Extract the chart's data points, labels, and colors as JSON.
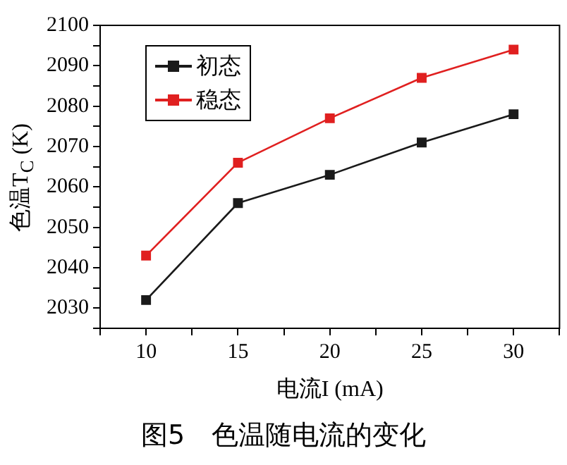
{
  "chart_data": {
    "type": "line",
    "xlabel": "电流I (mA)",
    "ylabel": "色温T$_{C}$ (K)",
    "x": [
      10,
      15,
      20,
      25,
      30
    ],
    "series": [
      {
        "name": "初态",
        "color": "#1a1a1a",
        "values": [
          2032,
          2056,
          2063,
          2071,
          2078
        ]
      },
      {
        "name": "稳态",
        "color": "#e02020",
        "values": [
          2043,
          2066,
          2077,
          2087,
          2094
        ]
      }
    ],
    "xlim": [
      7.5,
      32.5
    ],
    "xticks": [
      {
        "value": 7.5,
        "label": null
      },
      10,
      {
        "value": 12.5,
        "label": null
      },
      15,
      {
        "value": 17.5,
        "label": null
      },
      20,
      {
        "value": 22.5,
        "label": null
      },
      25,
      {
        "value": 27.5,
        "label": null
      },
      30,
      {
        "value": 32.5,
        "label": null
      }
    ],
    "ylim": [
      2025,
      2100
    ],
    "yticks": [
      {
        "value": 2025,
        "label": null
      },
      2030,
      {
        "value": 2035,
        "label": null
      },
      2040,
      {
        "value": 2045,
        "label": null
      },
      2050,
      {
        "value": 2055,
        "label": null
      },
      2060,
      {
        "value": 2065,
        "label": null
      },
      2070,
      {
        "value": 2075,
        "label": null
      },
      2080,
      {
        "value": 2085,
        "label": null
      },
      2090,
      {
        "value": 2095,
        "label": null
      },
      2100
    ],
    "grid": false,
    "legend": "top left",
    "marker": "square",
    "line_style": "solid",
    "annotations": [
      "图5　色温随电流的变化"
    ]
  }
}
